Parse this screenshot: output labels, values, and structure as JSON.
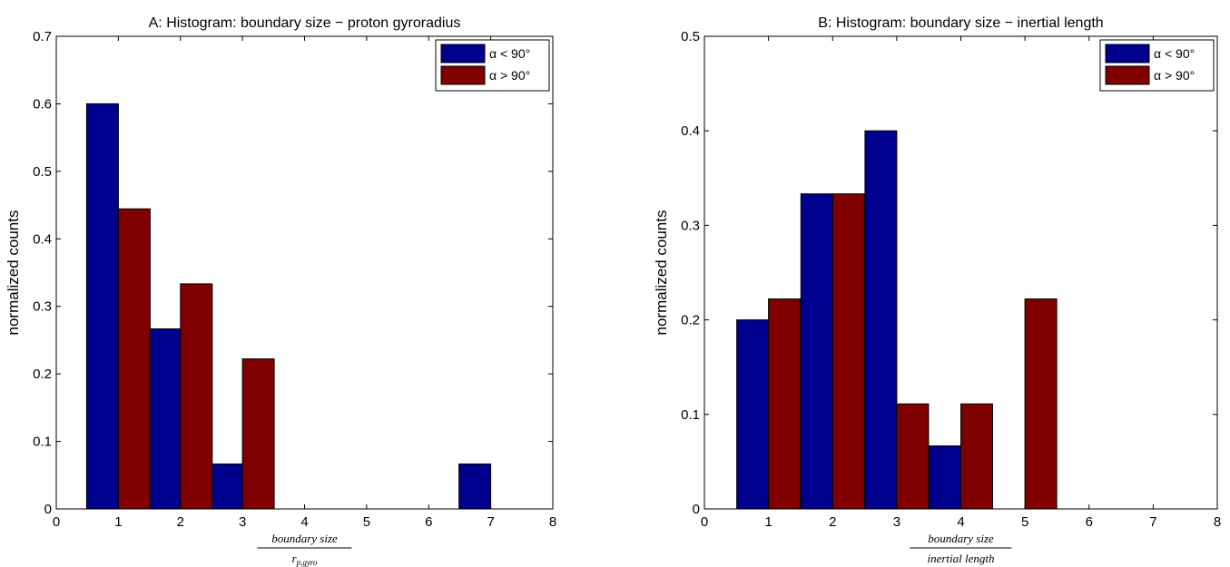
{
  "chart_data": [
    {
      "type": "bar",
      "title": "A: Histogram: boundary size − proton gyroradius",
      "ylabel": "normalized counts",
      "xlabel_numerator": "boundary size",
      "xlabel_denominator": "r",
      "xlabel_denominator_sub": "p,gyro",
      "xlim": [
        0,
        8
      ],
      "ylim": [
        0,
        0.7
      ],
      "xticks": [
        "0",
        "1",
        "2",
        "3",
        "4",
        "5",
        "6",
        "7",
        "8"
      ],
      "yticks": [
        "0",
        "0.1",
        "0.2",
        "0.3",
        "0.4",
        "0.5",
        "0.6",
        "0.7"
      ],
      "legend_position": "top-right",
      "x": [
        1,
        2,
        3,
        4,
        5,
        6,
        7,
        8
      ],
      "series": [
        {
          "name": "α < 90°",
          "color": "#00008f",
          "values": [
            0.6,
            0.2667,
            0.0667,
            0,
            0,
            0,
            0.0667,
            0
          ]
        },
        {
          "name": "α > 90°",
          "color": "#800000",
          "values": [
            0.4444,
            0.3333,
            0.2222,
            0,
            0,
            0,
            0,
            0
          ]
        }
      ]
    },
    {
      "type": "bar",
      "title": "B: Histogram: boundary size − inertial length",
      "ylabel": "normalized counts",
      "xlabel_numerator": "boundary size",
      "xlabel_denominator": "inertial length",
      "xlabel_denominator_sub": "",
      "xlim": [
        0,
        8
      ],
      "ylim": [
        0,
        0.5
      ],
      "xticks": [
        "0",
        "1",
        "2",
        "3",
        "4",
        "5",
        "6",
        "7",
        "8"
      ],
      "yticks": [
        "0",
        "0.1",
        "0.2",
        "0.3",
        "0.4",
        "0.5"
      ],
      "legend_position": "top-right",
      "x": [
        1,
        2,
        3,
        4,
        5,
        6,
        7,
        8
      ],
      "series": [
        {
          "name": "α < 90°",
          "color": "#00008f",
          "values": [
            0.2,
            0.3333,
            0.4,
            0.0667,
            0,
            0,
            0,
            0
          ]
        },
        {
          "name": "α > 90°",
          "color": "#800000",
          "values": [
            0.2222,
            0.3333,
            0.1111,
            0.1111,
            0.2222,
            0,
            0,
            0
          ]
        }
      ]
    }
  ]
}
